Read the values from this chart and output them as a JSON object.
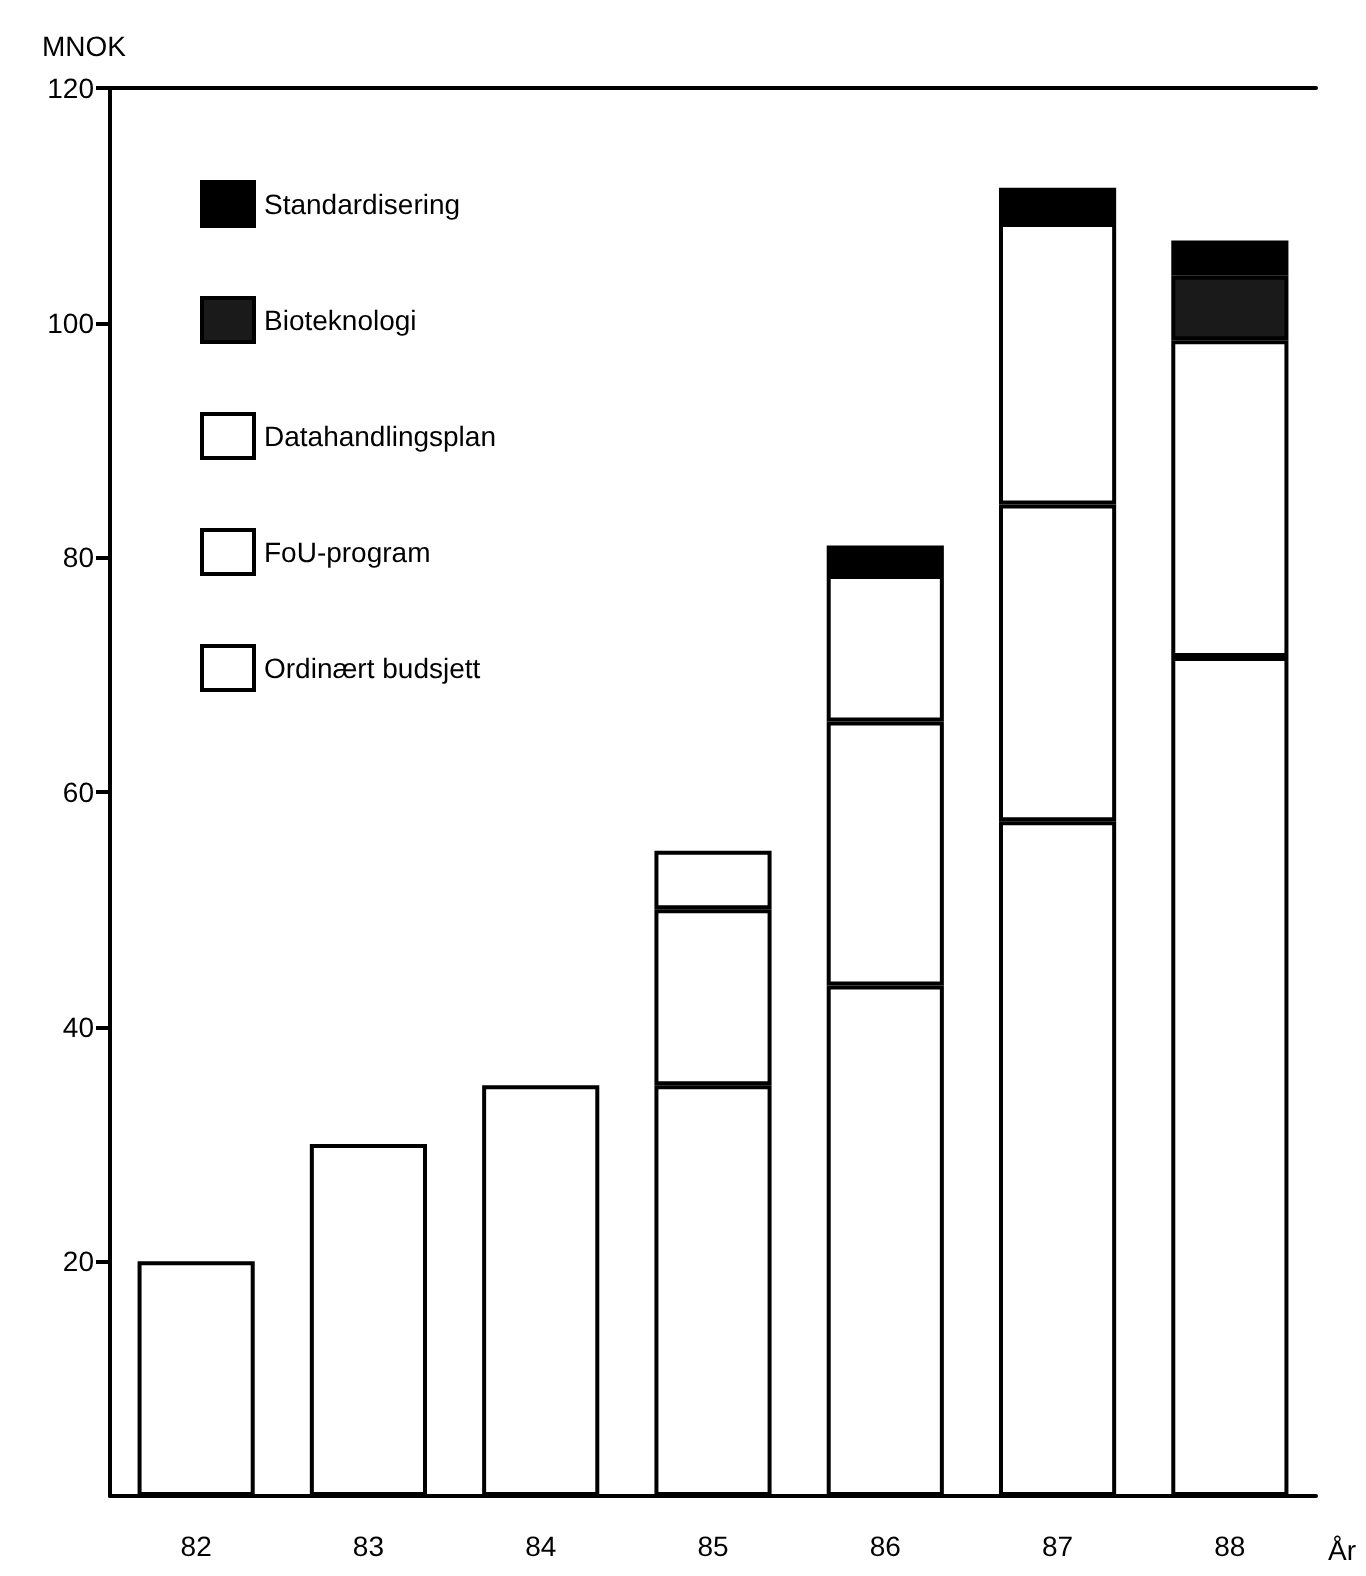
{
  "chart_data": {
    "type": "bar",
    "stacked": true,
    "ylabel": "MNOK",
    "xlabel": "År",
    "categories": [
      "82",
      "83",
      "84",
      "85",
      "86",
      "87",
      "88"
    ],
    "series": [
      {
        "name": "Ordinært budsjett",
        "color": "#ffffff",
        "values": [
          20,
          30,
          35,
          35,
          43.5,
          57.5,
          71.5
        ]
      },
      {
        "name": "FoU-program",
        "color": "#ffffff",
        "values": [
          null,
          null,
          null,
          15,
          22.5,
          27,
          27
        ]
      },
      {
        "name": "Datahandlingsplan",
        "color": "#ffffff",
        "values": [
          null,
          null,
          null,
          5,
          12.5,
          24,
          null
        ]
      },
      {
        "name": "Bioteknologi",
        "color": "#1a1a1a",
        "values": [
          null,
          null,
          null,
          null,
          null,
          null,
          5.5
        ]
      },
      {
        "name": "Standardisering",
        "color": "#000000",
        "values": [
          null,
          null,
          null,
          null,
          2.5,
          3,
          3
        ]
      }
    ],
    "ylim": [
      0,
      120
    ],
    "yticks": [
      20,
      40,
      60,
      80,
      100,
      120
    ],
    "grid": false,
    "legend": "top left"
  }
}
